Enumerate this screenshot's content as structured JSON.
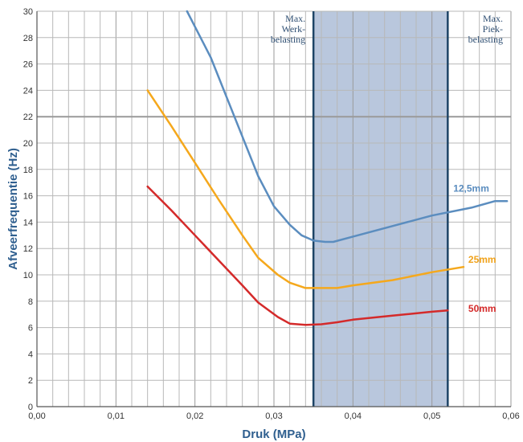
{
  "chart_data": {
    "type": "line",
    "xlabel": "Druk (MPa)",
    "ylabel": "Afveerfrequentie (Hz)",
    "xlim": [
      0,
      0.06
    ],
    "ylim": [
      0,
      30
    ],
    "x_ticks": [
      "0,00",
      "0,01",
      "0,02",
      "0,03",
      "0,04",
      "0,05",
      "0,06"
    ],
    "y_ticks": [
      "0",
      "2",
      "4",
      "6",
      "8",
      "10",
      "12",
      "14",
      "16",
      "18",
      "20",
      "22",
      "24",
      "26",
      "28",
      "30"
    ],
    "grid": true,
    "shaded_band": {
      "x_start": 0.035,
      "x_end": 0.052,
      "color": "#b9c7dd",
      "line_color": "#1d4466",
      "label_start": [
        "Max.",
        "Werk-",
        "belasting"
      ],
      "label_end": [
        "Max.",
        "Piek-",
        "belasting"
      ]
    },
    "series": [
      {
        "name": "12,5mm",
        "color": "#5b8dbf",
        "x": [
          0.019,
          0.022,
          0.025,
          0.028,
          0.03,
          0.032,
          0.0335,
          0.035,
          0.0365,
          0.0375,
          0.04,
          0.045,
          0.05,
          0.055,
          0.058,
          0.0595
        ],
        "y": [
          30,
          26.5,
          22,
          17.5,
          15.2,
          13.8,
          13,
          12.6,
          12.5,
          12.5,
          12.9,
          13.7,
          14.5,
          15.1,
          15.6,
          15.6
        ]
      },
      {
        "name": "25mm",
        "color": "#f5a81c",
        "x": [
          0.014,
          0.017,
          0.02,
          0.023,
          0.026,
          0.028,
          0.0305,
          0.032,
          0.034,
          0.0365,
          0.038,
          0.04,
          0.045,
          0.05,
          0.054
        ],
        "y": [
          24,
          21.3,
          18.5,
          15.7,
          13,
          11.3,
          10,
          9.4,
          9,
          9,
          9,
          9.2,
          9.6,
          10.2,
          10.6
        ]
      },
      {
        "name": "50mm",
        "color": "#d42a2a",
        "x": [
          0.014,
          0.017,
          0.02,
          0.023,
          0.026,
          0.028,
          0.0305,
          0.032,
          0.034,
          0.036,
          0.038,
          0.04,
          0.045,
          0.05,
          0.052
        ],
        "y": [
          16.7,
          14.9,
          13,
          11.1,
          9.2,
          7.9,
          6.8,
          6.3,
          6.2,
          6.25,
          6.4,
          6.6,
          6.9,
          7.2,
          7.3
        ]
      }
    ],
    "series_label_colors": {
      "12,5mm": "#5b8dbf",
      "25mm": "#f0a21a",
      "50mm": "#d42a2a"
    }
  }
}
